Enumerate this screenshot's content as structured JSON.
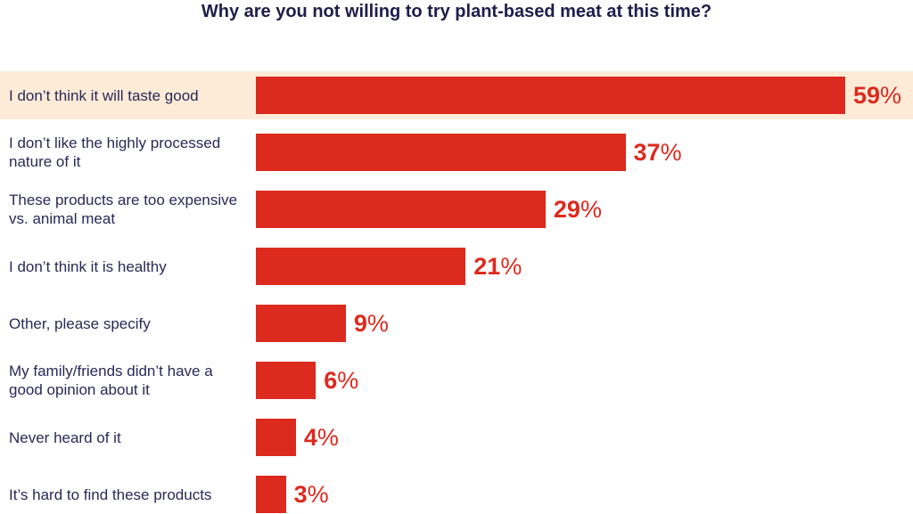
{
  "chart_data": {
    "type": "bar",
    "orientation": "horizontal",
    "title": "Why are you not willing to try plant-based meat at this time?",
    "categories": [
      "I don’t think it will taste good",
      "I don’t like the highly processed nature of it",
      "These products are too expensive vs. animal meat",
      "I don’t think it is healthy",
      "Other, please specify",
      "My family/friends didn’t have a good opinion about it",
      "Never heard of it",
      "It’s hard to find these products"
    ],
    "values": [
      59,
      37,
      29,
      21,
      9,
      6,
      4,
      3
    ],
    "value_labels": [
      "59%",
      "37%",
      "29%",
      "21%",
      "9%",
      "6%",
      "4%",
      "3%"
    ],
    "color": "#dc2a1e",
    "highlight_index": 0,
    "highlight_color": "#fdebd8"
  }
}
